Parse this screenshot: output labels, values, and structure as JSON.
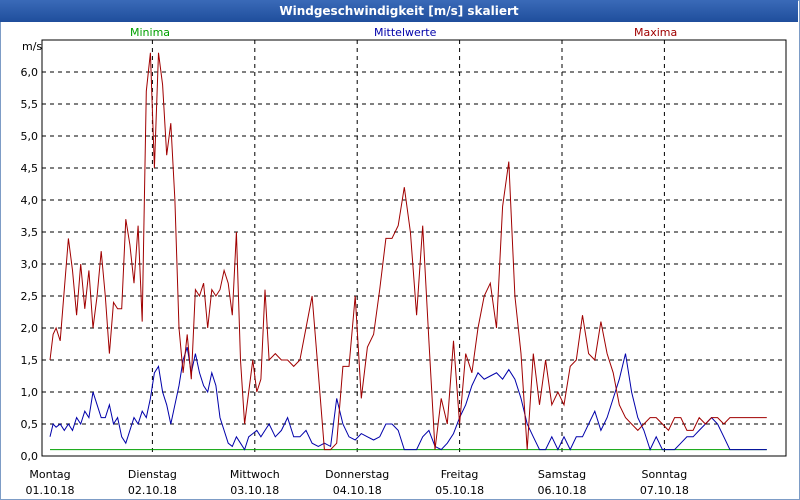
{
  "window": {
    "title": "Windgeschwindigkeit [m/s] skaliert"
  },
  "colors": {
    "titlebar": "#2a5caa",
    "grid": "#000000",
    "minima": "#00a000",
    "mittelwerte": "#0000aa",
    "maxima": "#a00000"
  },
  "chart_data": {
    "type": "line",
    "title": "Windgeschwindigkeit [m/s] skaliert",
    "ylabel": "m/s",
    "ylim": [
      0,
      6.5
    ],
    "yticks": [
      "0,0",
      "0,5",
      "1,0",
      "1,5",
      "2,0",
      "2,5",
      "3,0",
      "3,5",
      "4,0",
      "4,5",
      "5,0",
      "5,5",
      "6,0"
    ],
    "xlim": [
      0,
      7
    ],
    "grid": true,
    "legend_placement": "top",
    "x_ticks": [
      {
        "day": "Montag",
        "date": "01.10.18"
      },
      {
        "day": "Dienstag",
        "date": "02.10.18"
      },
      {
        "day": "Mittwoch",
        "date": "03.10.18"
      },
      {
        "day": "Donnerstag",
        "date": "04.10.18"
      },
      {
        "day": "Freitag",
        "date": "05.10.18"
      },
      {
        "day": "Samstag",
        "date": "06.10.18"
      },
      {
        "day": "Sonntag",
        "date": "07.10.18"
      }
    ],
    "series": [
      {
        "name": "Minima",
        "color": "#00a000",
        "x": [
          0,
          7
        ],
        "y": [
          0.1,
          0.1
        ]
      },
      {
        "name": "Mittelwerte",
        "color": "#0000aa",
        "x": [
          0.0,
          0.03,
          0.06,
          0.1,
          0.14,
          0.18,
          0.22,
          0.26,
          0.3,
          0.34,
          0.38,
          0.42,
          0.46,
          0.5,
          0.54,
          0.58,
          0.62,
          0.66,
          0.7,
          0.74,
          0.78,
          0.82,
          0.86,
          0.9,
          0.94,
          0.98,
          1.02,
          1.06,
          1.1,
          1.14,
          1.18,
          1.22,
          1.26,
          1.3,
          1.34,
          1.38,
          1.42,
          1.46,
          1.5,
          1.54,
          1.58,
          1.62,
          1.66,
          1.7,
          1.74,
          1.78,
          1.82,
          1.86,
          1.9,
          1.94,
          1.98,
          2.02,
          2.06,
          2.1,
          2.14,
          2.2,
          2.26,
          2.32,
          2.38,
          2.44,
          2.5,
          2.56,
          2.62,
          2.68,
          2.74,
          2.8,
          2.86,
          2.92,
          2.98,
          3.04,
          3.1,
          3.16,
          3.22,
          3.28,
          3.34,
          3.4,
          3.46,
          3.52,
          3.58,
          3.64,
          3.7,
          3.76,
          3.82,
          3.88,
          3.94,
          4.0,
          4.06,
          4.12,
          4.18,
          4.24,
          4.3,
          4.36,
          4.42,
          4.48,
          4.54,
          4.6,
          4.66,
          4.72,
          4.78,
          4.84,
          4.9,
          4.96,
          5.02,
          5.08,
          5.14,
          5.2,
          5.26,
          5.32,
          5.38,
          5.44,
          5.5,
          5.56,
          5.62,
          5.68,
          5.74,
          5.8,
          5.86,
          5.92,
          5.98,
          6.04,
          6.1,
          6.16,
          6.22,
          6.28,
          6.34,
          6.4,
          6.46,
          6.52,
          6.58,
          6.64,
          6.7,
          6.76,
          6.82,
          6.88,
          6.94,
          7.0
        ],
        "y": [
          0.3,
          0.5,
          0.45,
          0.5,
          0.4,
          0.5,
          0.4,
          0.6,
          0.5,
          0.7,
          0.6,
          1.0,
          0.8,
          0.6,
          0.6,
          0.8,
          0.5,
          0.6,
          0.3,
          0.2,
          0.4,
          0.6,
          0.5,
          0.7,
          0.6,
          0.9,
          1.3,
          1.4,
          1.0,
          0.8,
          0.5,
          0.8,
          1.1,
          1.5,
          1.7,
          1.3,
          1.6,
          1.3,
          1.1,
          1.0,
          1.3,
          1.1,
          0.6,
          0.4,
          0.2,
          0.15,
          0.3,
          0.2,
          0.1,
          0.3,
          0.35,
          0.4,
          0.3,
          0.4,
          0.5,
          0.3,
          0.4,
          0.6,
          0.3,
          0.3,
          0.4,
          0.2,
          0.15,
          0.2,
          0.15,
          0.9,
          0.5,
          0.3,
          0.25,
          0.35,
          0.3,
          0.25,
          0.3,
          0.5,
          0.5,
          0.4,
          0.1,
          0.1,
          0.1,
          0.3,
          0.4,
          0.15,
          0.1,
          0.2,
          0.35,
          0.6,
          0.8,
          1.1,
          1.3,
          1.2,
          1.25,
          1.3,
          1.2,
          1.35,
          1.2,
          0.9,
          0.5,
          0.3,
          0.1,
          0.1,
          0.3,
          0.1,
          0.3,
          0.1,
          0.3,
          0.3,
          0.5,
          0.7,
          0.4,
          0.6,
          0.9,
          1.2,
          1.6,
          1.0,
          0.6,
          0.4,
          0.1,
          0.3,
          0.1,
          0.1,
          0.1,
          0.2,
          0.3,
          0.3,
          0.4,
          0.5,
          0.6,
          0.5,
          0.3,
          0.1,
          0.1,
          0.1,
          0.1,
          0.1,
          0.1,
          0.1
        ]
      },
      {
        "name": "Maxima",
        "color": "#a00000",
        "x": [
          0.0,
          0.03,
          0.06,
          0.1,
          0.14,
          0.18,
          0.22,
          0.26,
          0.3,
          0.34,
          0.38,
          0.42,
          0.46,
          0.5,
          0.54,
          0.58,
          0.62,
          0.66,
          0.7,
          0.74,
          0.78,
          0.82,
          0.86,
          0.9,
          0.94,
          0.98,
          1.02,
          1.06,
          1.1,
          1.14,
          1.18,
          1.22,
          1.26,
          1.3,
          1.34,
          1.38,
          1.42,
          1.46,
          1.5,
          1.54,
          1.58,
          1.62,
          1.66,
          1.7,
          1.74,
          1.78,
          1.82,
          1.86,
          1.9,
          1.94,
          1.98,
          2.02,
          2.06,
          2.1,
          2.14,
          2.2,
          2.26,
          2.32,
          2.38,
          2.44,
          2.5,
          2.56,
          2.62,
          2.68,
          2.74,
          2.8,
          2.86,
          2.92,
          2.98,
          3.04,
          3.1,
          3.16,
          3.22,
          3.28,
          3.34,
          3.4,
          3.46,
          3.52,
          3.58,
          3.64,
          3.7,
          3.76,
          3.82,
          3.88,
          3.94,
          4.0,
          4.06,
          4.12,
          4.18,
          4.24,
          4.3,
          4.36,
          4.42,
          4.48,
          4.54,
          4.6,
          4.66,
          4.72,
          4.78,
          4.84,
          4.9,
          4.96,
          5.02,
          5.08,
          5.14,
          5.2,
          5.26,
          5.32,
          5.38,
          5.44,
          5.5,
          5.56,
          5.62,
          5.68,
          5.74,
          5.8,
          5.86,
          5.92,
          5.98,
          6.04,
          6.1,
          6.16,
          6.22,
          6.28,
          6.34,
          6.4,
          6.46,
          6.52,
          6.58,
          6.64,
          6.7,
          6.76,
          6.82,
          6.88,
          6.94,
          7.0
        ],
        "y": [
          1.5,
          1.9,
          2.0,
          1.8,
          2.6,
          3.4,
          2.9,
          2.2,
          3.0,
          2.3,
          2.9,
          2.0,
          2.5,
          3.2,
          2.5,
          1.6,
          2.4,
          2.3,
          2.3,
          3.7,
          3.3,
          2.7,
          3.6,
          2.1,
          5.7,
          6.3,
          4.5,
          6.3,
          5.8,
          4.7,
          5.2,
          4.0,
          2.0,
          1.3,
          1.9,
          1.2,
          2.6,
          2.5,
          2.7,
          2.0,
          2.6,
          2.5,
          2.6,
          2.9,
          2.7,
          2.2,
          3.5,
          1.5,
          0.5,
          1.0,
          1.5,
          1.0,
          1.2,
          2.6,
          1.5,
          1.6,
          1.5,
          1.5,
          1.4,
          1.5,
          2.0,
          2.5,
          1.3,
          0.1,
          0.1,
          0.2,
          1.4,
          1.4,
          2.5,
          0.9,
          1.7,
          1.9,
          2.6,
          3.4,
          3.4,
          3.6,
          4.2,
          3.5,
          2.2,
          3.6,
          1.8,
          0.1,
          0.9,
          0.5,
          1.8,
          0.5,
          1.6,
          1.3,
          2.0,
          2.5,
          2.7,
          2.0,
          3.9,
          4.6,
          2.5,
          1.6,
          0.1,
          1.6,
          0.8,
          1.5,
          0.8,
          1.0,
          0.8,
          1.4,
          1.5,
          2.2,
          1.6,
          1.5,
          2.1,
          1.6,
          1.3,
          0.8,
          0.6,
          0.5,
          0.4,
          0.5,
          0.6,
          0.6,
          0.5,
          0.4,
          0.6,
          0.6,
          0.4,
          0.4,
          0.6,
          0.5,
          0.6,
          0.6,
          0.5,
          0.6,
          0.6,
          0.6,
          0.6,
          0.6,
          0.6,
          0.6
        ]
      }
    ]
  }
}
